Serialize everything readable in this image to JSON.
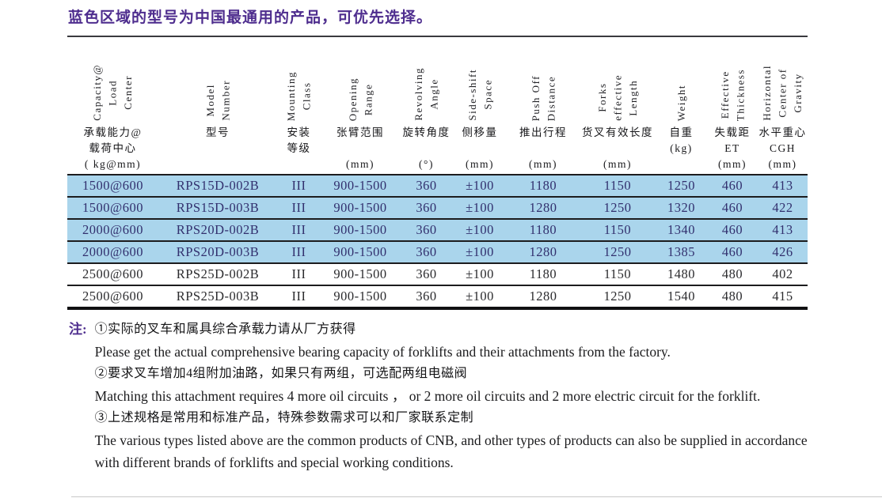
{
  "page": {
    "title": "蓝色区域的型号为中国最通用的产品，可优先选择。"
  },
  "colors": {
    "title_text": "#4e2d8e",
    "highlight_row_bg": "#aad5ec",
    "highlight_row_text": "#32306e",
    "body_text": "#1e1e1e"
  },
  "table": {
    "columns": [
      {
        "en": "Capacity@\nLoad\nCenter",
        "label1": "承载能力@",
        "label2": "载荷中心",
        "label3": "( kg@mm)"
      },
      {
        "en": "Model\nNumber",
        "label1": "型号",
        "label2": "",
        "label3": ""
      },
      {
        "en": "Mounting\nClass",
        "label1": "安装",
        "label2": "等级",
        "label3": ""
      },
      {
        "en": "Opening\nRange",
        "label1": "张臂范围",
        "label2": "",
        "label3": "(mm)"
      },
      {
        "en": "Revolving\nAngle",
        "label1": "旋转角度",
        "label2": "",
        "label3": "(°)"
      },
      {
        "en": "Side-shift\nSpace",
        "label1": "侧移量",
        "label2": "",
        "label3": "(mm)"
      },
      {
        "en": "Push Off\nDistance",
        "label1": "推出行程",
        "label2": "",
        "label3": "(mm)"
      },
      {
        "en": "Forks\neffective\nLength",
        "label1": "货叉有效长度",
        "label2": "",
        "label3": "(mm)"
      },
      {
        "en": "Weight",
        "label1": "自重",
        "label2": "(kg)",
        "label3": ""
      },
      {
        "en": "Effective\nThickness",
        "label1": "失载距",
        "label2": "ET",
        "label3": "(mm)"
      },
      {
        "en": "Horizontal\nCenter of\nGravity",
        "label1": "水平重心",
        "label2": "CGH",
        "label3": "(mm)"
      }
    ],
    "rows": [
      {
        "highlight": true,
        "cells": [
          "1500@600",
          "RPS15D-002B",
          "III",
          "900-1500",
          "360",
          "±100",
          "1180",
          "1150",
          "1250",
          "460",
          "413"
        ]
      },
      {
        "highlight": true,
        "cells": [
          "1500@600",
          "RPS15D-003B",
          "III",
          "900-1500",
          "360",
          "±100",
          "1280",
          "1250",
          "1320",
          "460",
          "422"
        ]
      },
      {
        "highlight": true,
        "cells": [
          "2000@600",
          "RPS20D-002B",
          "III",
          "900-1500",
          "360",
          "±100",
          "1180",
          "1150",
          "1340",
          "460",
          "413"
        ]
      },
      {
        "highlight": true,
        "cells": [
          "2000@600",
          "RPS20D-003B",
          "III",
          "900-1500",
          "360",
          "±100",
          "1280",
          "1250",
          "1385",
          "460",
          "426"
        ]
      },
      {
        "highlight": false,
        "cells": [
          "2500@600",
          "RPS25D-002B",
          "III",
          "900-1500",
          "360",
          "±100",
          "1180",
          "1150",
          "1480",
          "480",
          "402"
        ]
      },
      {
        "highlight": false,
        "cells": [
          "2500@600",
          "RPS25D-003B",
          "III",
          "900-1500",
          "360",
          "±100",
          "1280",
          "1250",
          "1540",
          "480",
          "415"
        ]
      }
    ]
  },
  "notes": {
    "label": "注:",
    "items": [
      {
        "zh": "①实际的叉车和属具综合承载力请从厂方获得",
        "en": "Please get the actual comprehensive bearing capacity of forklifts and their attachments from the factory."
      },
      {
        "zh": "②要求叉车增加4组附加油路，如果只有两组，可选配两组电磁阀",
        "en": "Matching this attachment requires 4 more oil circuits ， or 2 more oil circuits and 2 more electric circuit for the forklift."
      },
      {
        "zh": "③上述规格是常用和标准产品，特殊参数需求可以和厂家联系定制",
        "en": "The various types listed above are the common products of CNB, and other types of products can also be supplied in accordance with different brands of forklifts and special working conditions."
      }
    ]
  }
}
